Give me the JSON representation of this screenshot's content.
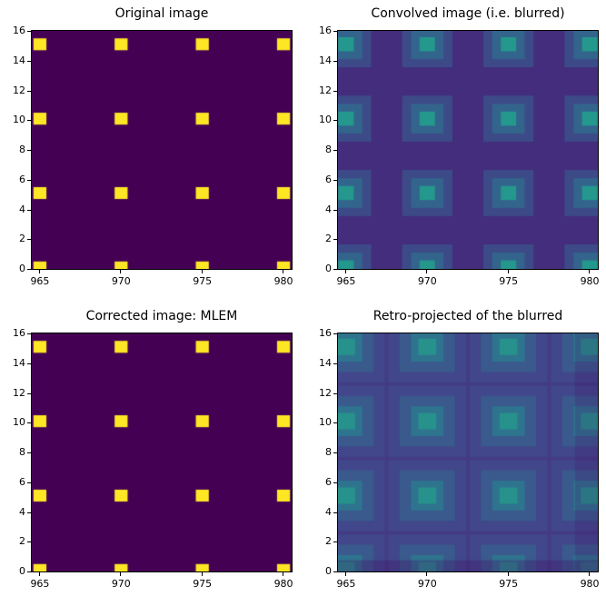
{
  "figure": {
    "background_color": "#ffffff"
  },
  "chart_data": [
    {
      "type": "heatmap",
      "title": "Original image",
      "colormap": "viridis",
      "x_range": [
        964.5,
        980.5
      ],
      "y_range": [
        0,
        16
      ],
      "x_ticks": [
        965,
        970,
        975,
        980
      ],
      "y_ticks": [
        0,
        2,
        4,
        6,
        8,
        10,
        12,
        14,
        16
      ],
      "background_color": "#440154",
      "sources": {
        "x": [
          965,
          970,
          975,
          980
        ],
        "y": [
          0.1,
          5.1,
          10.1,
          15.1
        ]
      },
      "psf_levels": [
        {
          "size": 0.8,
          "color": "#fde725"
        }
      ],
      "artifacts": []
    },
    {
      "type": "heatmap",
      "title": "Convolved image (i.e. blurred)",
      "colormap": "viridis",
      "x_range": [
        964.5,
        980.5
      ],
      "y_range": [
        0,
        16
      ],
      "x_ticks": [
        965,
        970,
        975,
        980
      ],
      "y_ticks": [
        0,
        2,
        4,
        6,
        8,
        10,
        12,
        14,
        16
      ],
      "background_color": "#432d7c",
      "sources": {
        "x": [
          965,
          970,
          975,
          980
        ],
        "y": [
          0.1,
          5.1,
          10.1,
          15.1
        ]
      },
      "psf_levels": [
        {
          "size": 3.1,
          "color": "#3d4a88"
        },
        {
          "size": 2.0,
          "color": "#33648c"
        },
        {
          "size": 0.95,
          "color": "#24988d"
        }
      ],
      "artifacts": []
    },
    {
      "type": "heatmap",
      "title": "Corrected image: MLEM",
      "colormap": "viridis",
      "x_range": [
        964.5,
        980.5
      ],
      "y_range": [
        0,
        16
      ],
      "x_ticks": [
        965,
        970,
        975,
        980
      ],
      "y_ticks": [
        0,
        2,
        4,
        6,
        8,
        10,
        12,
        14,
        16
      ],
      "background_color": "#440154",
      "sources": {
        "x": [
          965,
          970,
          975,
          980
        ],
        "y": [
          0.1,
          5.1,
          10.1,
          15.1
        ]
      },
      "psf_levels": [
        {
          "size": 0.8,
          "color": "#fde725"
        }
      ],
      "artifacts": []
    },
    {
      "type": "heatmap",
      "title": "Retro-projected of the blurred",
      "colormap": "viridis",
      "x_range": [
        964.5,
        980.5
      ],
      "y_range": [
        0,
        16
      ],
      "x_ticks": [
        965,
        970,
        975,
        980
      ],
      "y_ticks": [
        0,
        2,
        4,
        6,
        8,
        10,
        12,
        14,
        16
      ],
      "background_color": "#443b84",
      "sources": {
        "x": [
          965,
          970,
          975,
          980
        ],
        "y": [
          0.1,
          5.1,
          10.1,
          15.1
        ]
      },
      "psf_levels": [
        {
          "size": 4.8,
          "color": "#41478a"
        },
        {
          "size": 3.4,
          "color": "#3a5a8d"
        },
        {
          "size": 2.0,
          "color": "#2f748e"
        },
        {
          "size": 1.1,
          "color": "#27928b"
        }
      ],
      "artifacts": [
        {
          "x": [
            964.5,
            980.5
          ],
          "y": [
            0,
            0.75
          ],
          "color": "rgba(66,20,105,0.35)"
        },
        {
          "x": [
            979.1,
            980.5
          ],
          "y": [
            0,
            16
          ],
          "color": "rgba(66,20,105,0.22)"
        }
      ]
    }
  ]
}
